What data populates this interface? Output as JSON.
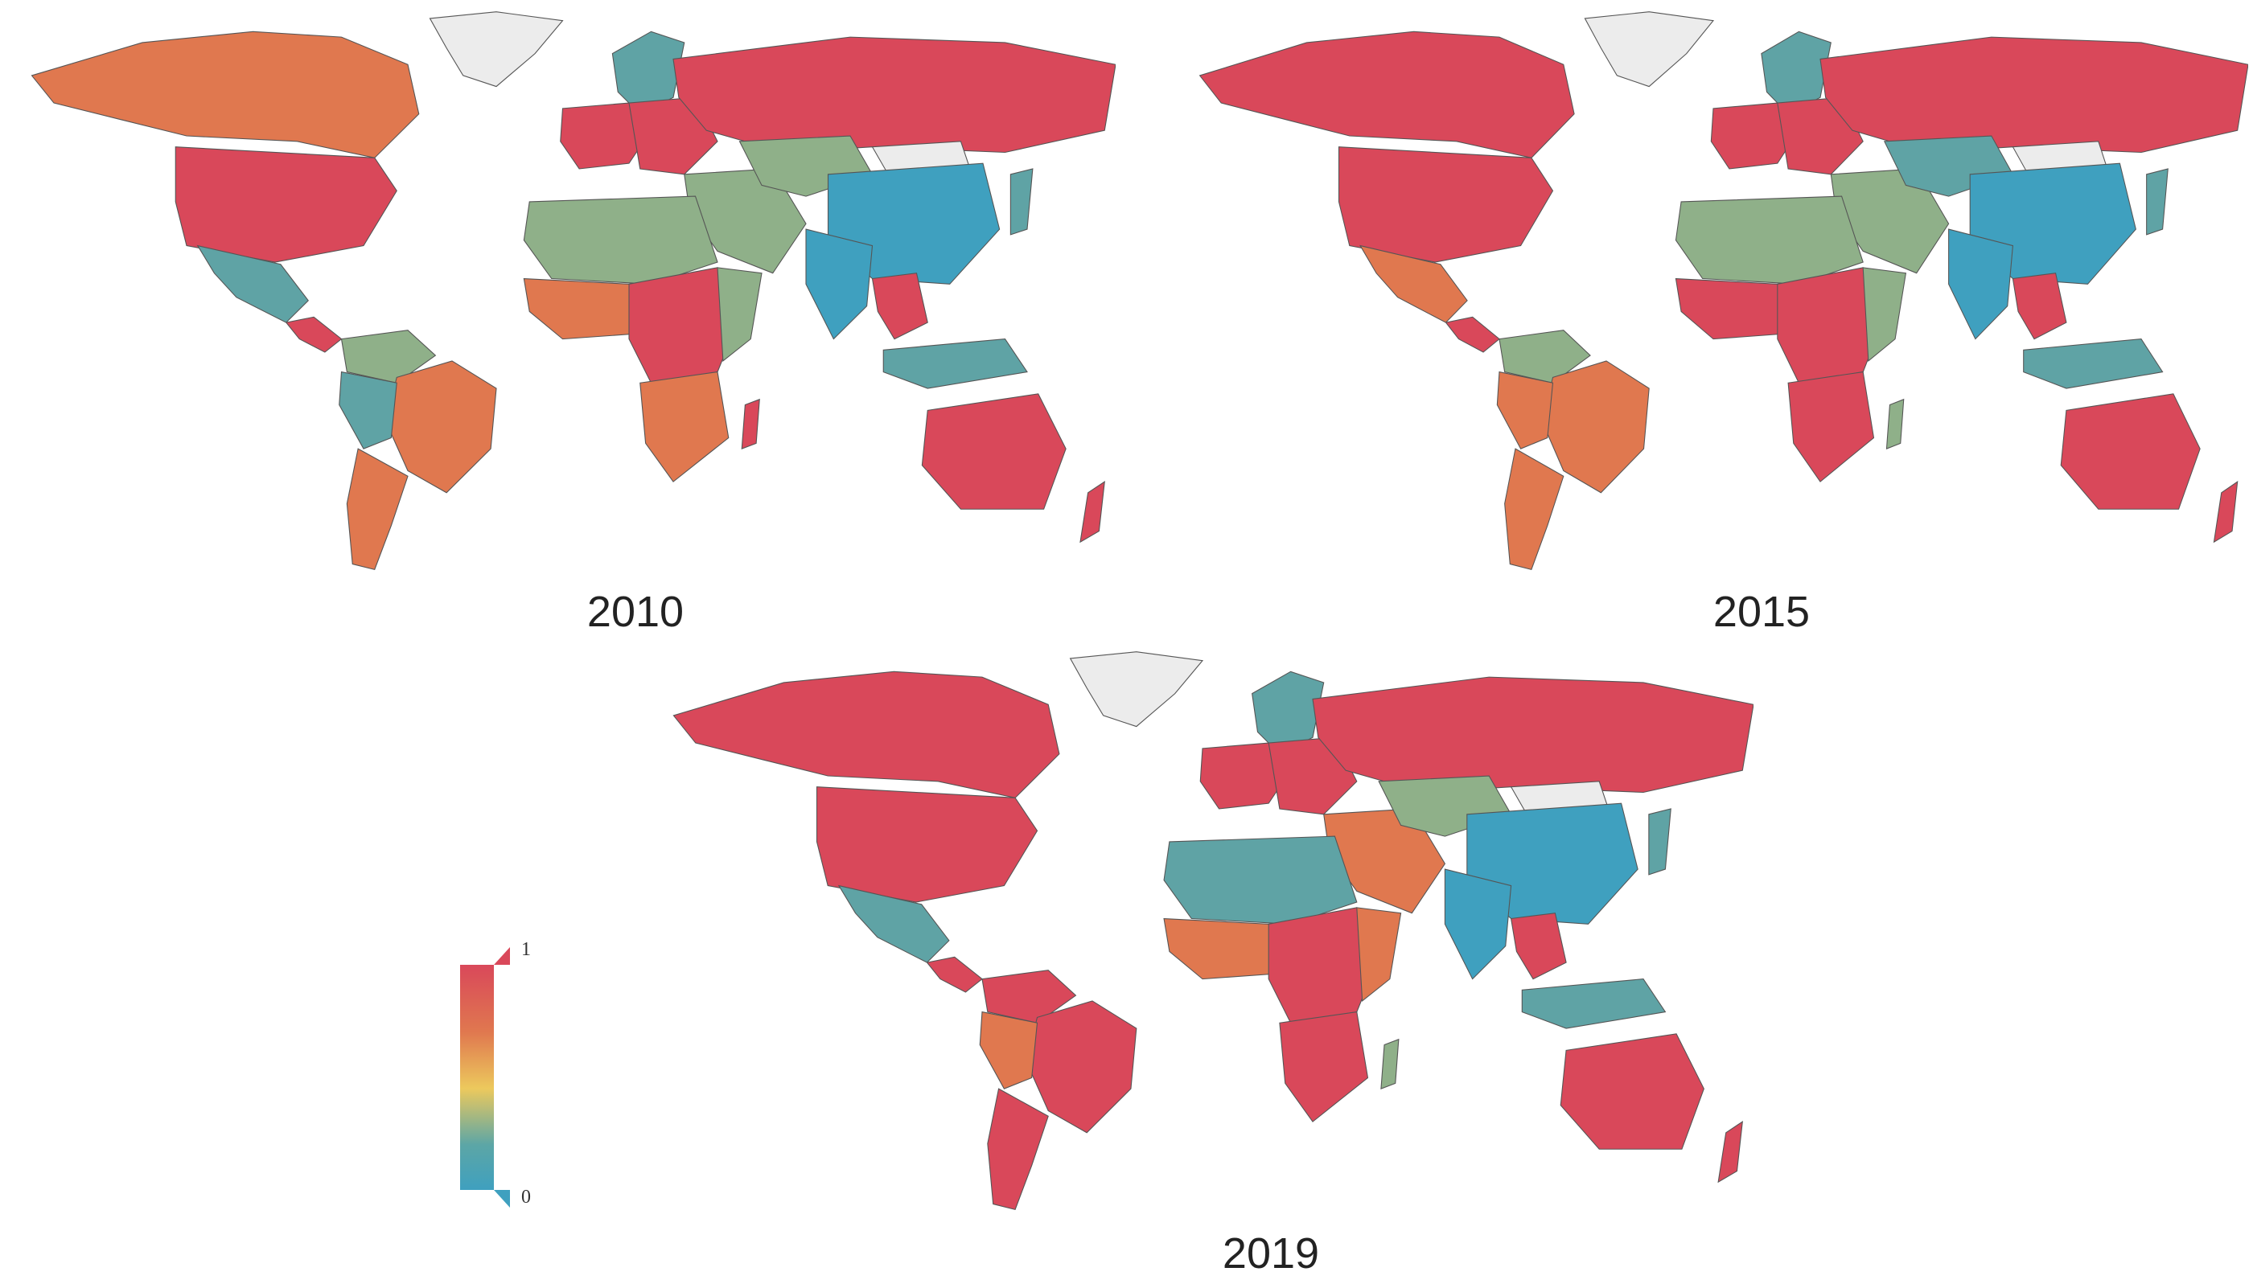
{
  "maps": [
    {
      "year_label": "2010"
    },
    {
      "year_label": "2015"
    },
    {
      "year_label": "2019"
    }
  ],
  "legend": {
    "max_label": "1",
    "min_label": "0",
    "gradient": [
      "#d9485a",
      "#e0784f",
      "#ecc95d",
      "#5ca6a6",
      "#3fa0bf"
    ]
  },
  "colors": {
    "high": "#d9485a",
    "mid_high": "#e0784f",
    "mid": "#ecc95d",
    "mid_low": "#8fb089",
    "low": "#5fa3a5",
    "lowest": "#3fa0bf",
    "no_data": "#ececec",
    "border": "#555555"
  }
}
